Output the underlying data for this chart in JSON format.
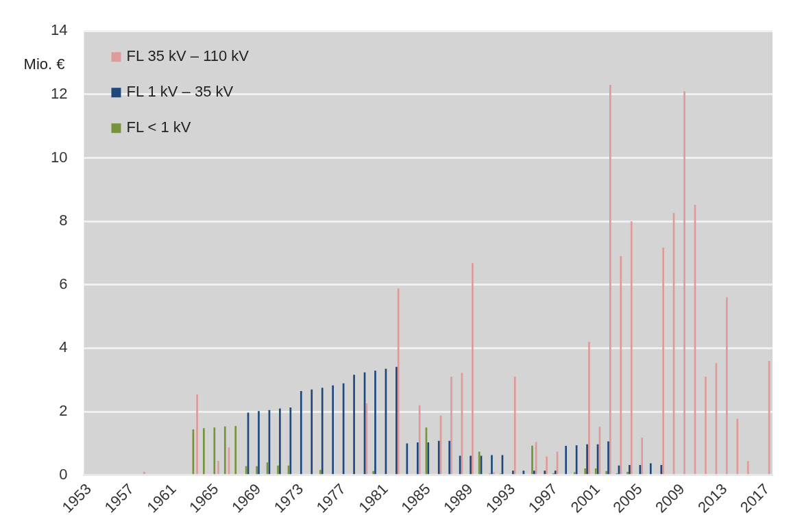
{
  "chart_data": {
    "type": "bar",
    "ylabel": "Mio. €",
    "categories": [
      "1953",
      null,
      null,
      null,
      "1957",
      null,
      null,
      null,
      "1961",
      null,
      null,
      null,
      "1965",
      null,
      null,
      null,
      "1969",
      null,
      null,
      null,
      "1973",
      null,
      null,
      null,
      "1977",
      null,
      null,
      null,
      "1981",
      null,
      null,
      null,
      "1985",
      null,
      null,
      null,
      "1989",
      null,
      null,
      null,
      "1993",
      null,
      null,
      null,
      "1997",
      null,
      null,
      null,
      "2001",
      null,
      null,
      null,
      "2005",
      null,
      null,
      null,
      "2009",
      null,
      null,
      null,
      "2013",
      null,
      null,
      null,
      "2017"
    ],
    "series": [
      {
        "name": "FL 35 kV – 110 kV",
        "color": "#e09a9a",
        "values": [
          null,
          null,
          null,
          null,
          null,
          0.1,
          null,
          null,
          null,
          null,
          2.54,
          null,
          0.45,
          0.87,
          null,
          null,
          null,
          null,
          null,
          null,
          null,
          null,
          null,
          null,
          null,
          null,
          2.26,
          null,
          null,
          5.88,
          null,
          2.2,
          null,
          1.87,
          3.1,
          3.22,
          6.68,
          null,
          0.09,
          null,
          3.1,
          null,
          1.04,
          0.59,
          0.74,
          null,
          null,
          4.2,
          1.52,
          12.3,
          6.9,
          8.0,
          1.18,
          null,
          7.17,
          8.27,
          12.1,
          8.52,
          3.1,
          3.53,
          5.6,
          1.78,
          0.44,
          null,
          3.6
        ]
      },
      {
        "name": "FL 1 kV – 35 kV",
        "color": "#1f497d",
        "values": [
          null,
          null,
          null,
          null,
          null,
          null,
          null,
          null,
          null,
          null,
          null,
          null,
          null,
          null,
          null,
          1.97,
          2.02,
          2.05,
          2.1,
          2.13,
          2.65,
          2.7,
          2.75,
          2.83,
          2.89,
          3.16,
          3.24,
          3.29,
          3.35,
          3.41,
          1.0,
          1.03,
          1.03,
          1.08,
          1.08,
          0.61,
          0.61,
          0.61,
          0.63,
          0.63,
          0.14,
          0.14,
          0.14,
          0.14,
          0.14,
          0.92,
          0.94,
          0.97,
          0.97,
          1.06,
          0.3,
          0.32,
          0.32,
          0.37,
          0.32,
          null,
          null,
          null,
          null,
          null,
          null,
          null,
          null,
          null,
          null
        ]
      },
      {
        "name": "FL < 1 kV",
        "color": "#77933c",
        "values": [
          null,
          null,
          null,
          null,
          null,
          null,
          null,
          null,
          null,
          null,
          1.44,
          1.48,
          1.5,
          1.53,
          1.55,
          0.28,
          0.28,
          0.4,
          0.3,
          0.3,
          null,
          null,
          0.16,
          null,
          null,
          null,
          null,
          0.13,
          null,
          null,
          null,
          null,
          1.5,
          null,
          null,
          null,
          null,
          0.74,
          0.05,
          0.05,
          null,
          null,
          0.93,
          null,
          0.06,
          null,
          0.09,
          0.21,
          0.21,
          0.13,
          0.06,
          0.1,
          null,
          null,
          null,
          null,
          null,
          null,
          null,
          null,
          null,
          null,
          null,
          null,
          null
        ]
      }
    ],
    "ylim": [
      0,
      14
    ],
    "yticks": [
      0,
      2,
      4,
      6,
      8,
      10,
      12,
      14
    ],
    "grid": "y",
    "legend": "top left"
  }
}
